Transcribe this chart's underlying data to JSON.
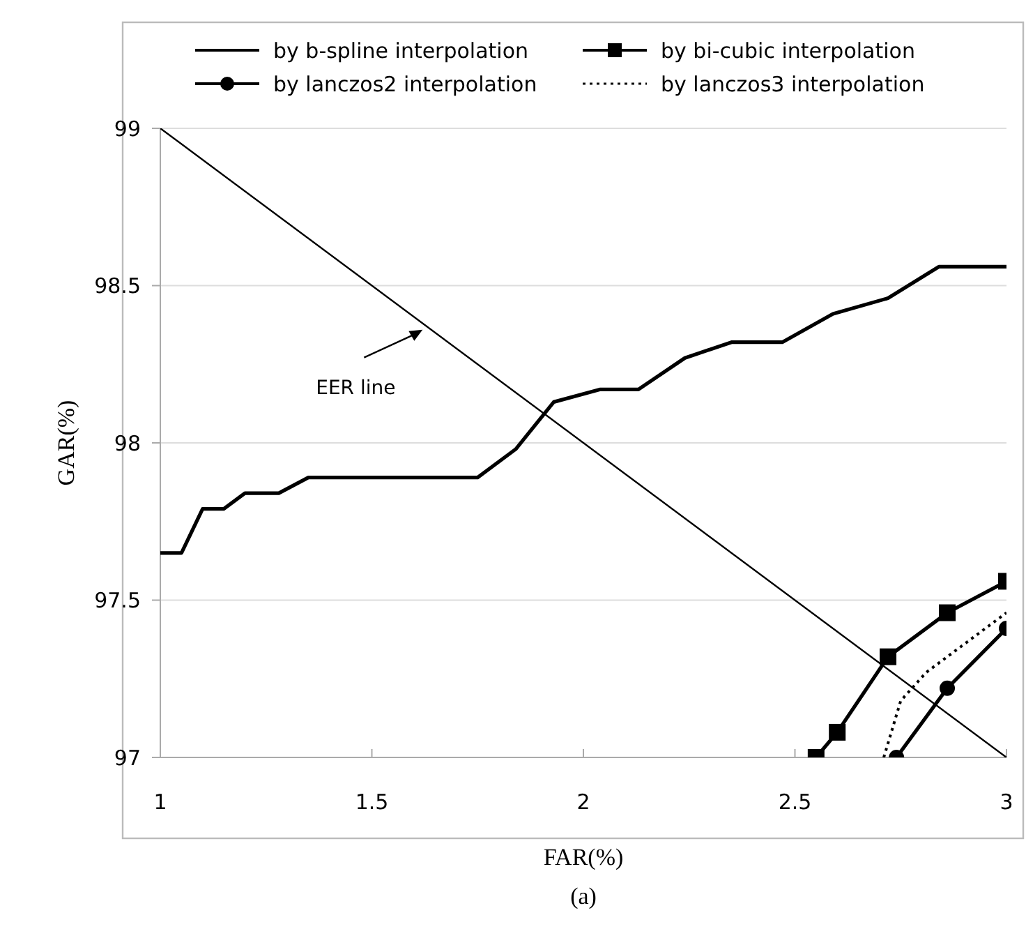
{
  "chart_data": {
    "type": "line",
    "xlabel": "FAR(%)",
    "ylabel": "GAR(%)",
    "xlim": [
      1,
      3
    ],
    "xticks": [
      1,
      1.5,
      2,
      2.5,
      3
    ],
    "ylim": [
      97,
      99
    ],
    "yticks": [
      97,
      97.5,
      98,
      98.5,
      99
    ],
    "grid": "y",
    "legend": "top",
    "series": [
      {
        "name": "by b-spline interpolation",
        "color": "#000000",
        "marker": "none",
        "line_style": "solid",
        "x": [
          1,
          1.05,
          1.1,
          1.15,
          1.2,
          1.28,
          1.35,
          1.75,
          1.84,
          1.93,
          2.04,
          2.13,
          2.24,
          2.35,
          2.47,
          2.59,
          2.72,
          2.84,
          3
        ],
        "values": [
          97.65,
          97.65,
          97.79,
          97.79,
          97.84,
          97.84,
          97.89,
          97.89,
          97.98,
          98.13,
          98.17,
          98.17,
          98.27,
          98.32,
          98.32,
          98.41,
          98.46,
          98.56,
          98.56
        ]
      },
      {
        "name": "by bi-cubic interpolation",
        "color": "#000000",
        "marker": "square",
        "line_style": "solid",
        "x": [
          2.55,
          2.6,
          2.72,
          2.86,
          3
        ],
        "values": [
          97,
          97.08,
          97.32,
          97.46,
          97.56
        ]
      },
      {
        "name": "by lanczos2 interpolation",
        "color": "#000000",
        "marker": "circle",
        "line_style": "solid",
        "x": [
          2.74,
          2.86,
          3
        ],
        "values": [
          97,
          97.22,
          97.41
        ]
      },
      {
        "name": "by lanczos3 interpolation",
        "color": "#000000",
        "marker": "none",
        "line_style": "dotted",
        "x": [
          2.71,
          2.75,
          2.81,
          3
        ],
        "values": [
          97,
          97.18,
          97.27,
          97.46
        ]
      },
      {
        "color": "#000000",
        "marker": "none",
        "line_style": "solid",
        "x": [
          1,
          3
        ],
        "values": [
          99,
          97
        ]
      }
    ],
    "annotations": [
      {
        "text": "EER line",
        "x": 1.62,
        "y": 98.36
      },
      "(a)"
    ]
  }
}
